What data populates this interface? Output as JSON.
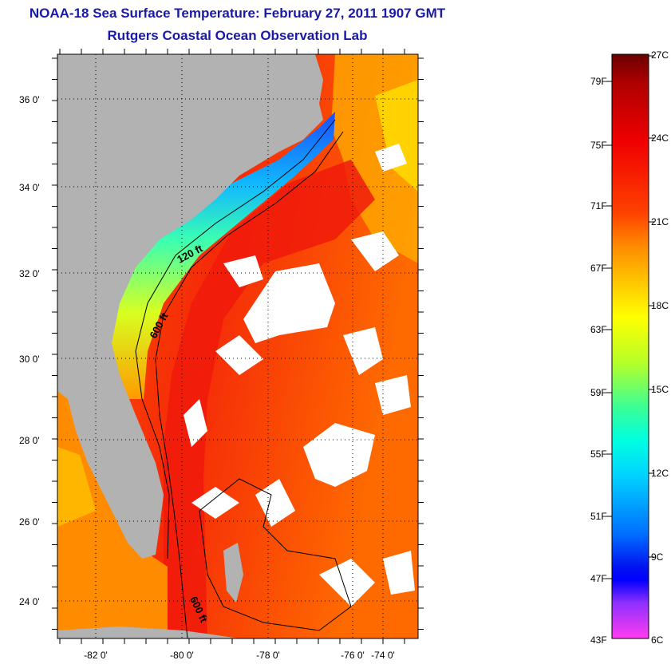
{
  "title": {
    "line1": "NOAA-18 Sea Surface Temperature:  February 27, 2011 1907 GMT",
    "line2": "Rutgers Coastal Ocean Observation Lab"
  },
  "map": {
    "lat_ticks": [
      "36 0'",
      "34 0'",
      "32 0'",
      "30 0'",
      "28 0'",
      "26 0'",
      "24 0'"
    ],
    "lon_ticks": [
      "-82 0'",
      "-80 0'",
      "-78 0'",
      "-76 0'",
      "-74 0'"
    ],
    "contour_labels": [
      "120 ft",
      "600 ft",
      "600 ft"
    ],
    "colors": {
      "land": "#b2b2b2",
      "cloud": "#ffffff",
      "gulf_stream": "#f01a0a"
    }
  },
  "colorbar": {
    "fahrenheit": [
      "79F",
      "75F",
      "71F",
      "67F",
      "63F",
      "59F",
      "55F",
      "51F",
      "47F",
      "43F"
    ],
    "celsius": [
      "27C",
      "24C",
      "21C",
      "18C",
      "15C",
      "12C",
      "9C",
      "6C"
    ],
    "colors": [
      "#6a0000",
      "#c80000",
      "#ff2a00",
      "#ff7a00",
      "#ffb800",
      "#ffff00",
      "#9cff3c",
      "#00ffc8",
      "#00c8ff",
      "#006aff",
      "#0000ff",
      "#8a3cff",
      "#ff3cff"
    ]
  }
}
